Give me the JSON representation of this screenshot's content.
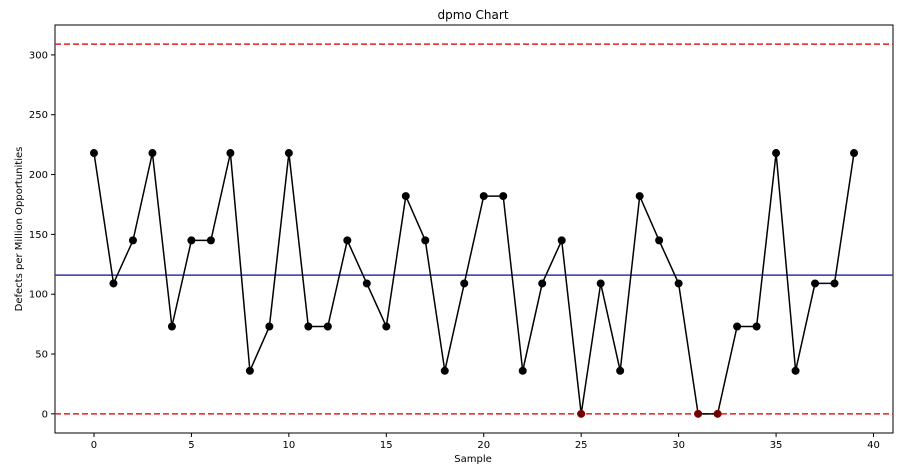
{
  "chart_data": {
    "type": "line",
    "title": "dpmo Chart",
    "xlabel": "Sample",
    "ylabel": "Defects per Million Opportunities",
    "x": [
      0,
      1,
      2,
      3,
      4,
      5,
      6,
      7,
      8,
      9,
      10,
      11,
      12,
      13,
      14,
      15,
      16,
      17,
      18,
      19,
      20,
      21,
      22,
      23,
      24,
      25,
      26,
      27,
      28,
      29,
      30,
      31,
      32,
      33,
      34,
      35,
      36,
      37,
      38,
      39
    ],
    "series": [
      {
        "values": [
          218,
          109,
          145,
          218,
          73,
          145,
          145,
          218,
          36,
          73,
          218,
          73,
          73,
          145,
          109,
          73,
          182,
          145,
          36,
          109,
          182,
          182,
          36,
          109,
          145,
          0,
          109,
          36,
          182,
          145,
          109,
          0,
          0,
          73,
          73,
          218,
          36,
          109,
          109,
          218
        ],
        "color": "#000000"
      }
    ],
    "center_line": {
      "value": 116,
      "color": "#3333aa"
    },
    "ucl": {
      "value": 309,
      "color": "#e02020"
    },
    "lcl": {
      "value": 0,
      "color": "#e02020"
    },
    "xlim": [
      -2,
      41
    ],
    "ylim": [
      -16,
      325
    ],
    "xticks": [
      0,
      5,
      10,
      15,
      20,
      25,
      30,
      35,
      40
    ],
    "yticks": [
      0,
      50,
      100,
      150,
      200,
      250,
      300
    ],
    "grid": false,
    "legend": "none"
  }
}
